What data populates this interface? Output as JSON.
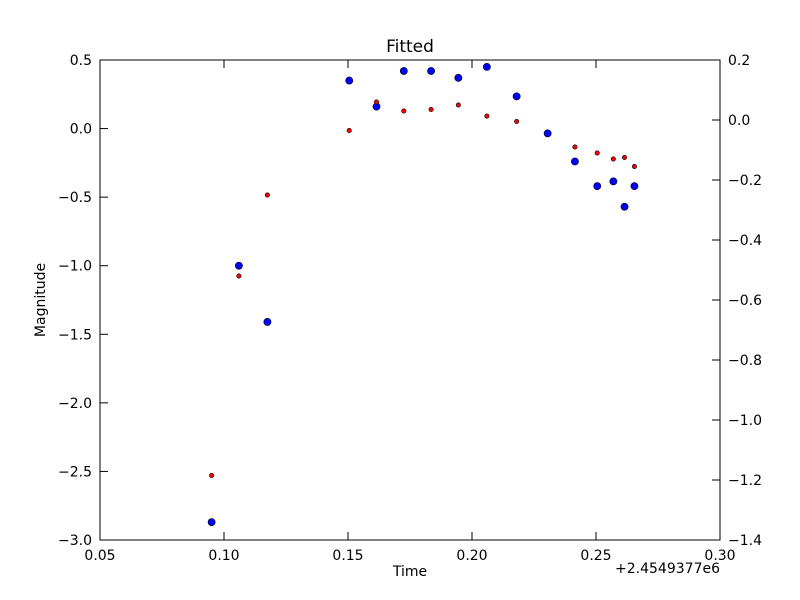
{
  "chart_data": {
    "type": "scatter",
    "title": "Fitted",
    "xlabel": "Time",
    "ylabel": "Magnitude",
    "x_offset_label": "+2.4549377e6",
    "xlim": [
      0.05,
      0.3
    ],
    "ylim": [
      -3.0,
      0.5
    ],
    "y2lim": [
      -1.4,
      0.2
    ],
    "x_ticks": [
      "0.05",
      "0.10",
      "0.15",
      "0.20",
      "0.25",
      "0.30"
    ],
    "y_ticks": [
      "0.5",
      "0.0",
      "−0.5",
      "−1.0",
      "−1.5",
      "−2.0",
      "−2.5",
      "−3.0"
    ],
    "y2_ticks": [
      "0.2",
      "0.0",
      "−0.2",
      "−0.4",
      "−0.6",
      "−0.8",
      "−1.0",
      "−1.2",
      "−1.4"
    ],
    "grid": false,
    "series": [
      {
        "axis": "left",
        "color": "#0000ff",
        "marker": "large-dot",
        "points": [
          [
            0.095,
            -2.87
          ],
          [
            0.106,
            -1.0
          ],
          [
            0.1175,
            -1.41
          ],
          [
            0.1505,
            0.35
          ],
          [
            0.1615,
            0.16
          ],
          [
            0.1725,
            0.42
          ],
          [
            0.1835,
            0.42
          ],
          [
            0.1945,
            0.37
          ],
          [
            0.206,
            0.45
          ],
          [
            0.218,
            0.235
          ],
          [
            0.2305,
            -0.035
          ],
          [
            0.2415,
            -0.24
          ],
          [
            0.2505,
            -0.42
          ],
          [
            0.257,
            -0.385
          ],
          [
            0.2615,
            -0.57
          ],
          [
            0.2655,
            -0.42
          ]
        ]
      },
      {
        "axis": "right",
        "color": "#ff0000",
        "marker": "small-dot",
        "points": [
          [
            0.095,
            -1.185
          ],
          [
            0.106,
            -0.52
          ],
          [
            0.1175,
            -0.25
          ],
          [
            0.1505,
            -0.035
          ],
          [
            0.1615,
            0.06
          ],
          [
            0.1725,
            0.03
          ],
          [
            0.1835,
            0.035
          ],
          [
            0.1945,
            0.05
          ],
          [
            0.206,
            0.013
          ],
          [
            0.218,
            -0.005
          ],
          [
            0.2415,
            -0.09
          ],
          [
            0.2505,
            -0.11
          ],
          [
            0.257,
            -0.13
          ],
          [
            0.2615,
            -0.125
          ],
          [
            0.2655,
            -0.155
          ]
        ]
      }
    ]
  }
}
